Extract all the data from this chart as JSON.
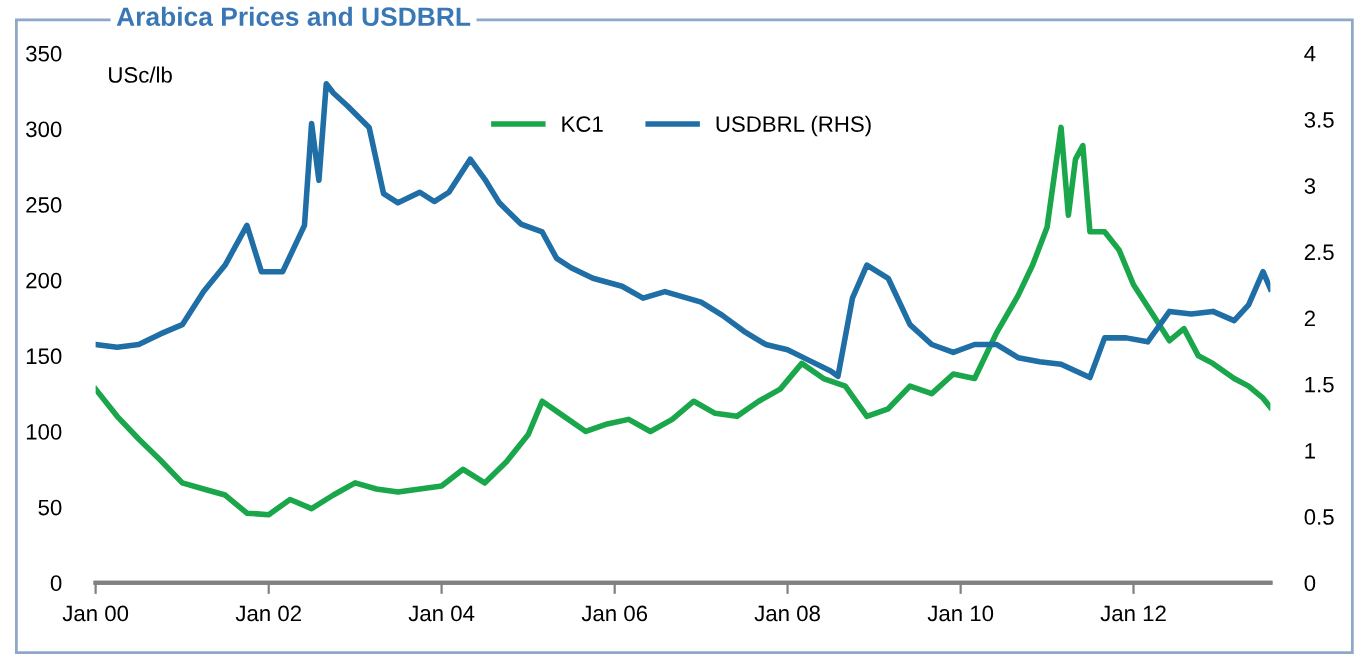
{
  "chart_data": {
    "type": "line",
    "title": "Arabica Prices and USDBRL",
    "ylabel": "USc/lb",
    "legend": "top",
    "grid": false,
    "marker": "none",
    "line_style": "solid",
    "xlim": [
      "2000-01",
      "2013-08"
    ],
    "xticks": [
      {
        "value": "2000-01",
        "label": "Jan 00"
      },
      {
        "value": "2002-01",
        "label": "Jan 02"
      },
      {
        "value": "2004-01",
        "label": "Jan 04"
      },
      {
        "value": "2006-01",
        "label": "Jan 06"
      },
      {
        "value": "2008-01",
        "label": "Jan 08"
      },
      {
        "value": "2010-01",
        "label": "Jan 10"
      },
      {
        "value": "2012-01",
        "label": "Jan 12"
      }
    ],
    "ylim": [
      0,
      350
    ],
    "yticks": [
      0,
      50,
      100,
      150,
      200,
      250,
      300,
      350
    ],
    "y2lim": [
      0,
      4
    ],
    "y2ticks": [
      0,
      0.5,
      1,
      1.5,
      2,
      2.5,
      3,
      3.5,
      4
    ],
    "series": [
      {
        "name": "KC1",
        "color": "#1aa64a",
        "axis": "y",
        "x": [
          "2000-01",
          "2000-04",
          "2000-07",
          "2000-10",
          "2001-01",
          "2001-04",
          "2001-07",
          "2001-10",
          "2002-01",
          "2002-04",
          "2002-07",
          "2002-10",
          "2003-01",
          "2003-04",
          "2003-07",
          "2003-10",
          "2004-01",
          "2004-04",
          "2004-07",
          "2004-10",
          "2005-01",
          "2005-03",
          "2005-06",
          "2005-09",
          "2005-12",
          "2006-03",
          "2006-06",
          "2006-09",
          "2006-12",
          "2007-03",
          "2007-06",
          "2007-09",
          "2007-12",
          "2008-03",
          "2008-06",
          "2008-09",
          "2008-12",
          "2009-03",
          "2009-06",
          "2009-09",
          "2009-12",
          "2010-03",
          "2010-06",
          "2010-09",
          "2010-11",
          "2011-01",
          "2011-03",
          "2011-04",
          "2011-05",
          "2011-06",
          "2011-07",
          "2011-09",
          "2011-11",
          "2012-01",
          "2012-04",
          "2012-06",
          "2012-08",
          "2012-10",
          "2012-12",
          "2013-03",
          "2013-05",
          "2013-07",
          "2013-08"
        ],
        "values": [
          128,
          110,
          95,
          81,
          66,
          62,
          58,
          46,
          45,
          55,
          49,
          58,
          66,
          62,
          60,
          62,
          64,
          75,
          66,
          80,
          98,
          120,
          110,
          100,
          105,
          108,
          100,
          108,
          120,
          112,
          110,
          120,
          128,
          145,
          135,
          130,
          110,
          115,
          130,
          125,
          138,
          135,
          165,
          190,
          210,
          235,
          301,
          243,
          280,
          289,
          232,
          232,
          220,
          197,
          175,
          160,
          168,
          150,
          145,
          135,
          130,
          122,
          116
        ]
      },
      {
        "name": "USDBRL (RHS)",
        "color": "#1f6ea6",
        "axis": "y2",
        "x": [
          "2000-01",
          "2000-04",
          "2000-07",
          "2000-10",
          "2001-01",
          "2001-04",
          "2001-07",
          "2001-10",
          "2001-12",
          "2002-03",
          "2002-06",
          "2002-07",
          "2002-08",
          "2002-09",
          "2002-10",
          "2002-12",
          "2003-03",
          "2003-05",
          "2003-07",
          "2003-10",
          "2003-12",
          "2004-02",
          "2004-05",
          "2004-07",
          "2004-09",
          "2004-12",
          "2005-03",
          "2005-05",
          "2005-07",
          "2005-10",
          "2006-02",
          "2006-05",
          "2006-08",
          "2007-01",
          "2007-04",
          "2007-07",
          "2007-10",
          "2008-01",
          "2008-04",
          "2008-07",
          "2008-08",
          "2008-10",
          "2008-12",
          "2009-03",
          "2009-06",
          "2009-09",
          "2009-12",
          "2010-03",
          "2010-06",
          "2010-09",
          "2010-12",
          "2011-03",
          "2011-07",
          "2011-09",
          "2011-12",
          "2012-03",
          "2012-06",
          "2012-09",
          "2012-12",
          "2013-03",
          "2013-05",
          "2013-07",
          "2013-08"
        ],
        "values": [
          1.8,
          1.78,
          1.8,
          1.88,
          1.95,
          2.2,
          2.4,
          2.7,
          2.35,
          2.35,
          2.7,
          3.47,
          3.04,
          3.77,
          3.7,
          3.6,
          3.44,
          2.94,
          2.87,
          2.95,
          2.88,
          2.95,
          3.2,
          3.05,
          2.87,
          2.71,
          2.65,
          2.45,
          2.38,
          2.3,
          2.24,
          2.15,
          2.2,
          2.12,
          2.02,
          1.9,
          1.8,
          1.76,
          1.68,
          1.6,
          1.56,
          2.15,
          2.4,
          2.3,
          1.95,
          1.8,
          1.74,
          1.8,
          1.8,
          1.7,
          1.67,
          1.65,
          1.55,
          1.85,
          1.85,
          1.82,
          2.05,
          2.03,
          2.05,
          1.98,
          2.1,
          2.35,
          2.22
        ]
      }
    ]
  }
}
